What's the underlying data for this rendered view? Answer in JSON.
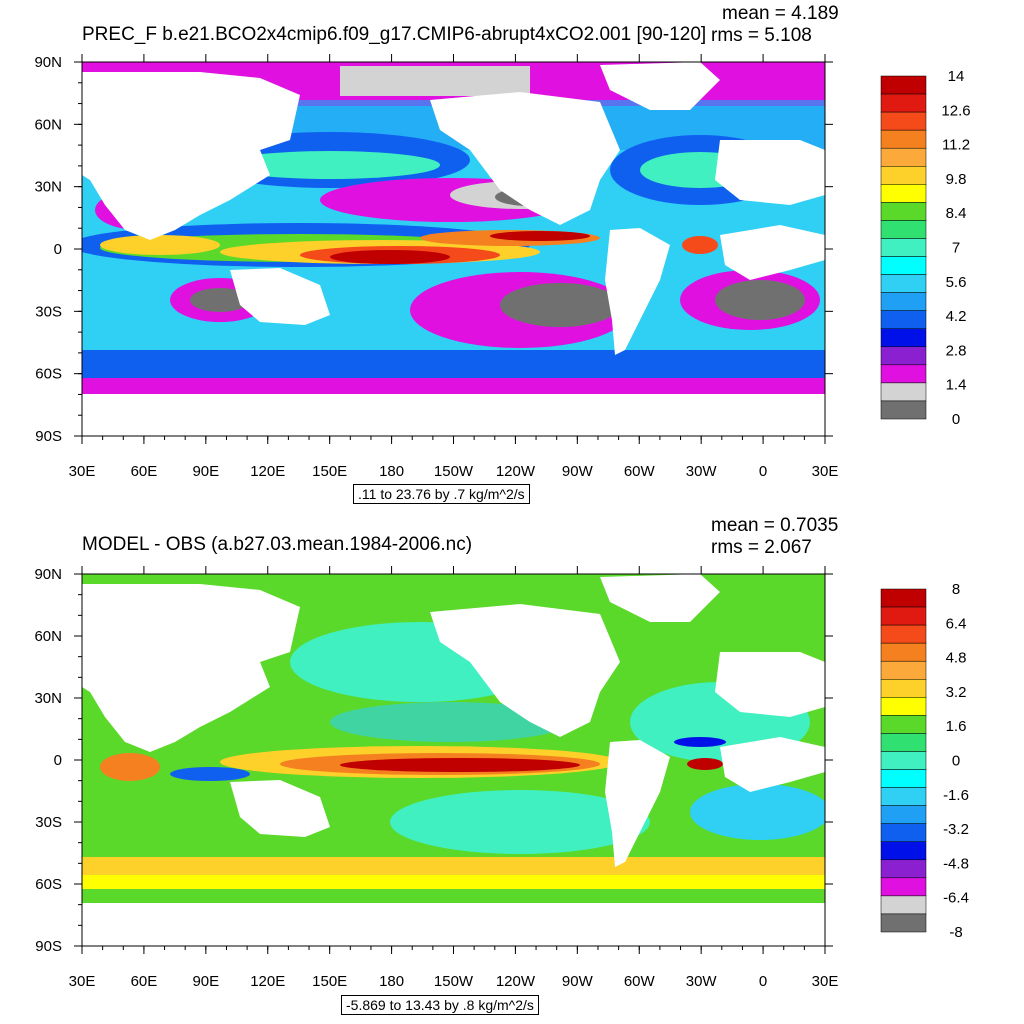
{
  "chart_data": [
    {
      "type": "heatmap",
      "title": "PREC_F b.e21.BCO2x4cmip6.f09_g17.CMIP6-abrupt4xCO2.001 [90-120]",
      "stats": {
        "mean": "mean = 4.189",
        "rms": "rms = 5.108"
      },
      "range_label": ".11 to 23.76 by .7 kg/m^2/s",
      "x_ticks": [
        "30E",
        "60E",
        "90E",
        "120E",
        "150E",
        "180",
        "150W",
        "120W",
        "90W",
        "60W",
        "30W",
        "0",
        "30E"
      ],
      "y_ticks": [
        "90N",
        "60N",
        "30N",
        "0",
        "30S",
        "60S",
        "90S"
      ],
      "colorbar_labels": [
        "14",
        "12.6",
        "11.2",
        "9.8",
        "8.4",
        "7",
        "5.6",
        "4.2",
        "2.8",
        "1.4",
        "0"
      ],
      "colorbar_colors": [
        "#c00000",
        "#e01a10",
        "#f54a1a",
        "#f58020",
        "#fba93a",
        "#fdd02a",
        "#ffff00",
        "#5ad92a",
        "#30e070",
        "#40f0c0",
        "#00ffff",
        "#30d0f5",
        "#1fa0f5",
        "#1060f0",
        "#0010e8",
        "#8a20d0",
        "#e010e0",
        "#d3d3d3",
        "#707070"
      ]
    },
    {
      "type": "heatmap",
      "title": "MODEL - OBS (a.b27.03.mean.1984-2006.nc)",
      "stats": {
        "mean": "mean = 0.7035",
        "rms": "rms = 2.067"
      },
      "range_label": "-5.869 to 13.43 by .8 kg/m^2/s",
      "x_ticks": [
        "30E",
        "60E",
        "90E",
        "120E",
        "150E",
        "180",
        "150W",
        "120W",
        "90W",
        "60W",
        "30W",
        "0",
        "30E"
      ],
      "y_ticks": [
        "90N",
        "60N",
        "30N",
        "0",
        "30S",
        "60S",
        "90S"
      ],
      "colorbar_labels": [
        "8",
        "6.4",
        "4.8",
        "3.2",
        "1.6",
        "0",
        "-1.6",
        "-3.2",
        "-4.8",
        "-6.4",
        "-8"
      ],
      "colorbar_colors": [
        "#c00000",
        "#e01a10",
        "#f54a1a",
        "#f58020",
        "#fba93a",
        "#fdd02a",
        "#ffff00",
        "#5ad92a",
        "#30e070",
        "#40f0c0",
        "#00ffff",
        "#30d0f5",
        "#1fa0f5",
        "#1060f0",
        "#0010e8",
        "#8a20d0",
        "#e010e0",
        "#d3d3d3",
        "#707070"
      ]
    }
  ]
}
